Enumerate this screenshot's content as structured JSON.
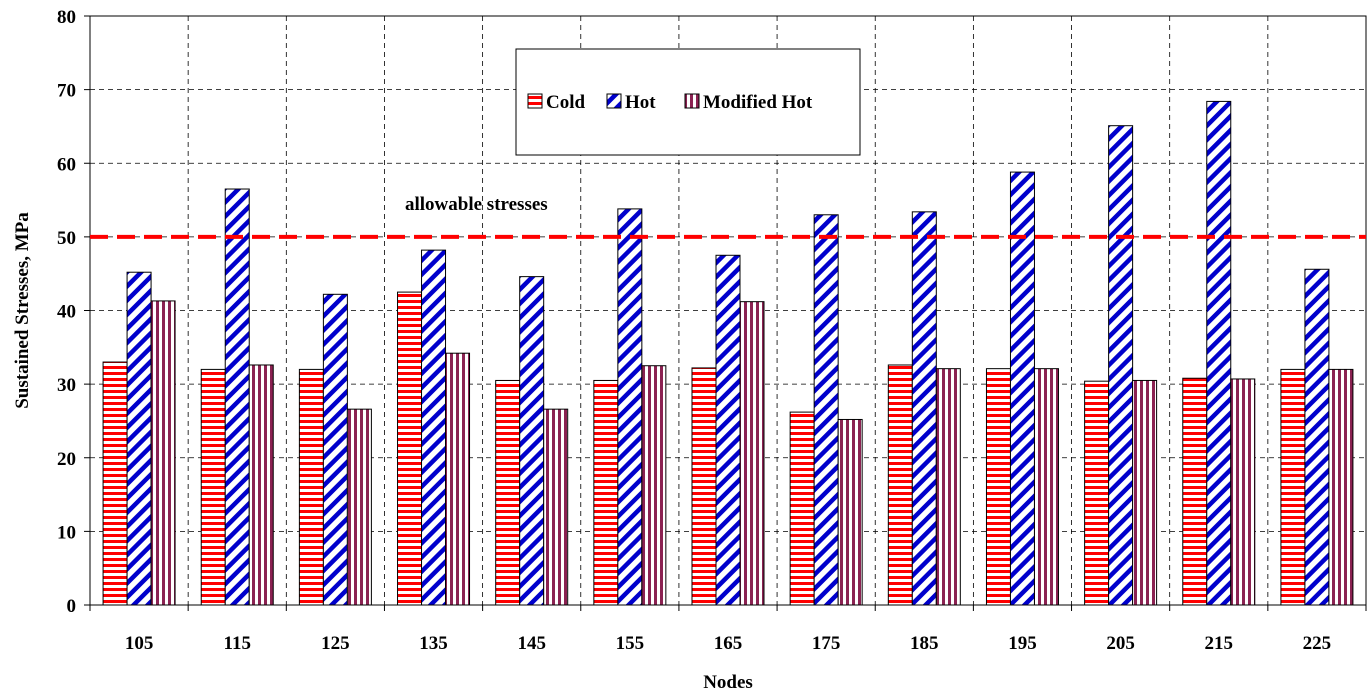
{
  "chart_data": {
    "type": "bar",
    "categories": [
      "105",
      "115",
      "125",
      "135",
      "145",
      "155",
      "165",
      "175",
      "185",
      "195",
      "205",
      "215",
      "225"
    ],
    "series": [
      {
        "name": "Cold",
        "values": [
          33.0,
          32.0,
          32.0,
          42.5,
          30.5,
          30.5,
          32.2,
          26.2,
          32.6,
          32.1,
          30.4,
          30.8,
          32.0
        ]
      },
      {
        "name": "Hot",
        "values": [
          45.2,
          56.5,
          42.2,
          48.2,
          44.6,
          53.8,
          47.5,
          53.0,
          53.4,
          58.8,
          65.1,
          68.4,
          45.6
        ]
      },
      {
        "name": "Modified Hot",
        "values": [
          41.3,
          32.6,
          26.6,
          34.2,
          26.6,
          32.5,
          41.2,
          25.2,
          32.1,
          32.1,
          30.5,
          30.7,
          32.0
        ]
      }
    ],
    "xlabel": "Nodes",
    "ylabel": "Sustained Stresses, MPa",
    "ylim": [
      0,
      80
    ],
    "yticks": [
      0,
      10,
      20,
      30,
      40,
      50,
      60,
      70,
      80
    ],
    "grid": true,
    "legend_position": "top-center",
    "reference_line": {
      "value": 50,
      "label": "allowable stresses",
      "color": "#ff0000"
    },
    "colors": {
      "Cold": "#ff0000",
      "Hot": "#0000cc",
      "Modified Hot": "#8b2252"
    }
  }
}
